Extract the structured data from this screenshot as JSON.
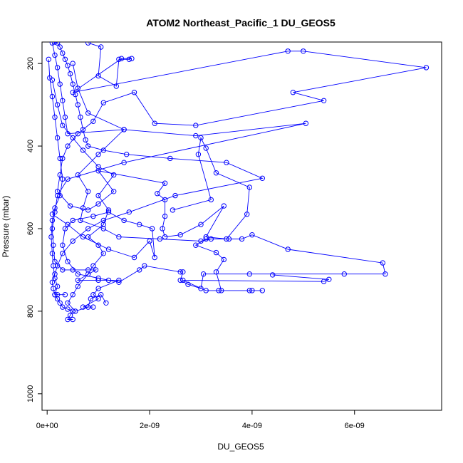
{
  "chart_data": {
    "type": "line",
    "title": "ATOM2 Northeast_Pacific_1 DU_GEOS5",
    "xlabel": "DU_GEOS5",
    "ylabel": "Pressure (mbar)",
    "xlim": [
      -1e-10,
      7.7e-09
    ],
    "ylim": [
      1040,
      148
    ],
    "y_reversed": true,
    "x_ticks": [
      {
        "value": 0,
        "label": "0e+00"
      },
      {
        "value": 2e-09,
        "label": "2e-09"
      },
      {
        "value": 4e-09,
        "label": "4e-09"
      },
      {
        "value": 6e-09,
        "label": "6e-09"
      }
    ],
    "y_ticks": [
      {
        "value": 200,
        "label": "200"
      },
      {
        "value": 400,
        "label": "400"
      },
      {
        "value": 600,
        "label": "600"
      },
      {
        "value": 800,
        "label": "800"
      },
      {
        "value": 1000,
        "label": "1000"
      }
    ],
    "grid": false,
    "marker": "open-circle",
    "color": "#0000ff",
    "series": [
      {
        "values": [
          [
            1.5e-10,
            148
          ],
          [
            2e-10,
            150
          ],
          [
            2.5e-10,
            160
          ],
          [
            3e-10,
            175
          ],
          [
            3.5e-10,
            190
          ],
          [
            4e-10,
            205
          ],
          [
            4.5e-10,
            225
          ],
          [
            5e-10,
            250
          ],
          [
            5.5e-10,
            275
          ],
          [
            6e-10,
            300
          ],
          [
            6.5e-10,
            330
          ],
          [
            7e-10,
            360
          ],
          [
            7.5e-10,
            385
          ],
          [
            8e-10,
            400
          ],
          [
            1.1e-09,
            410
          ],
          [
            1.55e-09,
            420
          ],
          [
            2.4e-09,
            430
          ],
          [
            3.5e-09,
            440
          ],
          [
            4.2e-09,
            478
          ],
          [
            2.5e-09,
            520
          ],
          [
            1.6e-09,
            560
          ],
          [
            1.1e-09,
            580
          ],
          [
            8e-10,
            600
          ],
          [
            5e-10,
            630
          ],
          [
            3e-10,
            660
          ],
          [
            2e-10,
            690
          ],
          [
            1.5e-10,
            710
          ],
          [
            1e-10,
            730
          ],
          [
            1.2e-10,
            745
          ],
          [
            1.5e-10,
            760
          ],
          [
            2e-10,
            770
          ],
          [
            2.5e-10,
            780
          ],
          [
            3e-10,
            790
          ],
          [
            4e-10,
            795
          ],
          [
            5e-10,
            800
          ],
          [
            4.5e-10,
            810
          ],
          [
            4e-10,
            820
          ],
          [
            5e-10,
            820
          ]
        ]
      },
      {
        "values": [
          [
            1e-10,
            150
          ],
          [
            1.5e-10,
            180
          ],
          [
            2e-10,
            210
          ],
          [
            2.5e-10,
            250
          ],
          [
            3e-10,
            290
          ],
          [
            3.5e-10,
            330
          ],
          [
            4e-10,
            370
          ],
          [
            1.5e-09,
            360
          ],
          [
            2.9e-09,
            375
          ],
          [
            5.05e-09,
            345
          ],
          [
            1.5e-09,
            440
          ],
          [
            4e-10,
            480
          ],
          [
            2e-10,
            520
          ],
          [
            1.5e-10,
            560
          ],
          [
            1e-10,
            600
          ],
          [
            1.2e-10,
            640
          ],
          [
            1.5e-10,
            680
          ],
          [
            3e-10,
            700
          ],
          [
            5e-10,
            700
          ],
          [
            8e-10,
            700
          ],
          [
            9.5e-10,
            700
          ],
          [
            6e-10,
            725
          ],
          [
            1e-09,
            725
          ],
          [
            1.2e-09,
            725
          ],
          [
            1.4e-09,
            725
          ],
          [
            1e-09,
            745
          ],
          [
            9e-10,
            760
          ],
          [
            1e-09,
            770
          ],
          [
            7e-10,
            790
          ],
          [
            9e-10,
            790
          ]
        ]
      },
      {
        "values": [
          [
            8e-10,
            150
          ],
          [
            1.05e-09,
            160
          ],
          [
            1e-09,
            230
          ],
          [
            1.35e-09,
            255
          ],
          [
            1.4e-09,
            190
          ],
          [
            1.6e-09,
            190
          ],
          [
            1.65e-09,
            188
          ],
          [
            1.45e-09,
            188
          ],
          [
            5e-10,
            270
          ],
          [
            4.7e-09,
            170
          ],
          [
            5e-09,
            170
          ],
          [
            7.4e-09,
            210
          ],
          [
            4.8e-09,
            270
          ],
          [
            5.4e-09,
            290
          ],
          [
            2.9e-09,
            350
          ],
          [
            2.1e-09,
            345
          ],
          [
            1.7e-09,
            270
          ],
          [
            1.1e-09,
            295
          ],
          [
            9e-10,
            340
          ],
          [
            6e-10,
            370
          ],
          [
            4e-10,
            400
          ],
          [
            3e-10,
            430
          ],
          [
            2.5e-10,
            470
          ],
          [
            2e-10,
            510
          ],
          [
            4.5e-10,
            545
          ],
          [
            8e-10,
            555
          ],
          [
            1e-09,
            540
          ],
          [
            1.3e-09,
            510
          ],
          [
            1e-09,
            460
          ],
          [
            2.3e-09,
            490
          ],
          [
            2.15e-09,
            515
          ],
          [
            2.3e-09,
            530
          ],
          [
            2.3e-09,
            570
          ],
          [
            2.25e-09,
            600
          ],
          [
            2.3e-09,
            620
          ],
          [
            2.6e-09,
            615
          ],
          [
            3e-09,
            590
          ],
          [
            3.45e-09,
            545
          ],
          [
            3.1e-09,
            620
          ],
          [
            3.5e-09,
            625
          ],
          [
            3.9e-09,
            565
          ],
          [
            3.95e-09,
            500
          ],
          [
            3.3e-09,
            465
          ],
          [
            3.1e-09,
            405
          ],
          [
            3e-09,
            380
          ],
          [
            2.95e-09,
            420
          ],
          [
            3.2e-09,
            530
          ],
          [
            2.45e-09,
            555
          ]
        ]
      },
      {
        "values": [
          [
            1e-10,
            565
          ],
          [
            4e-10,
            590
          ],
          [
            7e-10,
            620
          ],
          [
            1.2e-09,
            650
          ],
          [
            1.7e-09,
            670
          ],
          [
            2e-09,
            630
          ],
          [
            2.1e-09,
            670
          ],
          [
            2.05e-09,
            600
          ],
          [
            1.8e-09,
            590
          ],
          [
            1.5e-09,
            580
          ],
          [
            1.2e-09,
            560
          ],
          [
            9e-10,
            570
          ],
          [
            5e-10,
            580
          ],
          [
            3.5e-10,
            600
          ],
          [
            3e-10,
            640
          ],
          [
            4e-10,
            680
          ],
          [
            6e-10,
            710
          ],
          [
            1e-09,
            720
          ],
          [
            1.4e-09,
            730
          ],
          [
            1.8e-09,
            700
          ],
          [
            1.9e-09,
            690
          ],
          [
            2.6e-09,
            705
          ],
          [
            2.65e-09,
            705
          ],
          [
            2.6e-09,
            725
          ],
          [
            2.75e-09,
            735
          ],
          [
            3e-09,
            745
          ],
          [
            3.05e-09,
            710
          ],
          [
            3.95e-09,
            710
          ],
          [
            5.8e-09,
            710
          ],
          [
            6.6e-09,
            710
          ],
          [
            6.55e-09,
            683
          ],
          [
            4.7e-09,
            650
          ],
          [
            4e-09,
            615
          ],
          [
            3.8e-09,
            625
          ],
          [
            3.1e-09,
            625
          ],
          [
            2.9e-09,
            640
          ],
          [
            3.3e-09,
            658
          ],
          [
            3.45e-09,
            675
          ],
          [
            3.3e-09,
            705
          ],
          [
            3.4e-09,
            750
          ],
          [
            3.35e-09,
            750
          ],
          [
            3.95e-09,
            750
          ],
          [
            4e-09,
            750
          ],
          [
            4.2e-09,
            750
          ],
          [
            3.1e-09,
            750
          ],
          [
            2.65e-09,
            725
          ],
          [
            5.4e-09,
            728
          ],
          [
            5.5e-09,
            723
          ],
          [
            4.4e-09,
            712
          ]
        ]
      },
      {
        "values": [
          [
            1e-10,
            240
          ],
          [
            2e-10,
            300
          ],
          [
            3e-10,
            350
          ],
          [
            5e-10,
            380
          ],
          [
            7e-10,
            410
          ],
          [
            1e-09,
            450
          ],
          [
            1.3e-09,
            470
          ],
          [
            1e-09,
            520
          ],
          [
            1.2e-09,
            555
          ],
          [
            1.1e-09,
            590
          ],
          [
            8e-10,
            620
          ],
          [
            1e-09,
            640
          ],
          [
            1.1e-09,
            660
          ],
          [
            9e-10,
            690
          ],
          [
            8e-10,
            710
          ],
          [
            6e-10,
            740
          ],
          [
            5e-10,
            760
          ],
          [
            4e-10,
            780
          ],
          [
            5.5e-10,
            800
          ],
          [
            8e-10,
            790
          ],
          [
            8.5e-10,
            770
          ],
          [
            1.05e-09,
            760
          ],
          [
            1.15e-09,
            780
          ]
        ]
      },
      {
        "values": [
          [
            3e-11,
            190
          ],
          [
            5e-11,
            235
          ],
          [
            1e-10,
            280
          ],
          [
            1.5e-10,
            330
          ],
          [
            2e-10,
            380
          ],
          [
            2.5e-10,
            430
          ],
          [
            3e-10,
            480
          ],
          [
            2.5e-10,
            520
          ],
          [
            1.5e-10,
            550
          ],
          [
            1e-10,
            580
          ],
          [
            8e-11,
            620
          ],
          [
            1e-10,
            660
          ],
          [
            1.2e-10,
            690
          ],
          [
            1.5e-10,
            720
          ],
          [
            2e-10,
            740
          ],
          [
            1.5e-10,
            760
          ],
          [
            2e-10,
            760
          ],
          [
            3.5e-10,
            760
          ]
        ]
      },
      {
        "values": [
          [
            5e-10,
            200
          ],
          [
            6e-10,
            260
          ],
          [
            8e-10,
            320
          ],
          [
            1.5e-09,
            360
          ],
          [
            1e-09,
            420
          ],
          [
            6e-10,
            470
          ],
          [
            8e-10,
            510
          ],
          [
            7e-10,
            550
          ],
          [
            6.5e-10,
            580
          ],
          [
            1.1e-09,
            600
          ],
          [
            1.4e-09,
            620
          ],
          [
            2.2e-09,
            625
          ],
          [
            3e-09,
            630
          ],
          [
            3.2e-09,
            625
          ],
          [
            3.55e-09,
            625
          ]
        ]
      }
    ]
  }
}
